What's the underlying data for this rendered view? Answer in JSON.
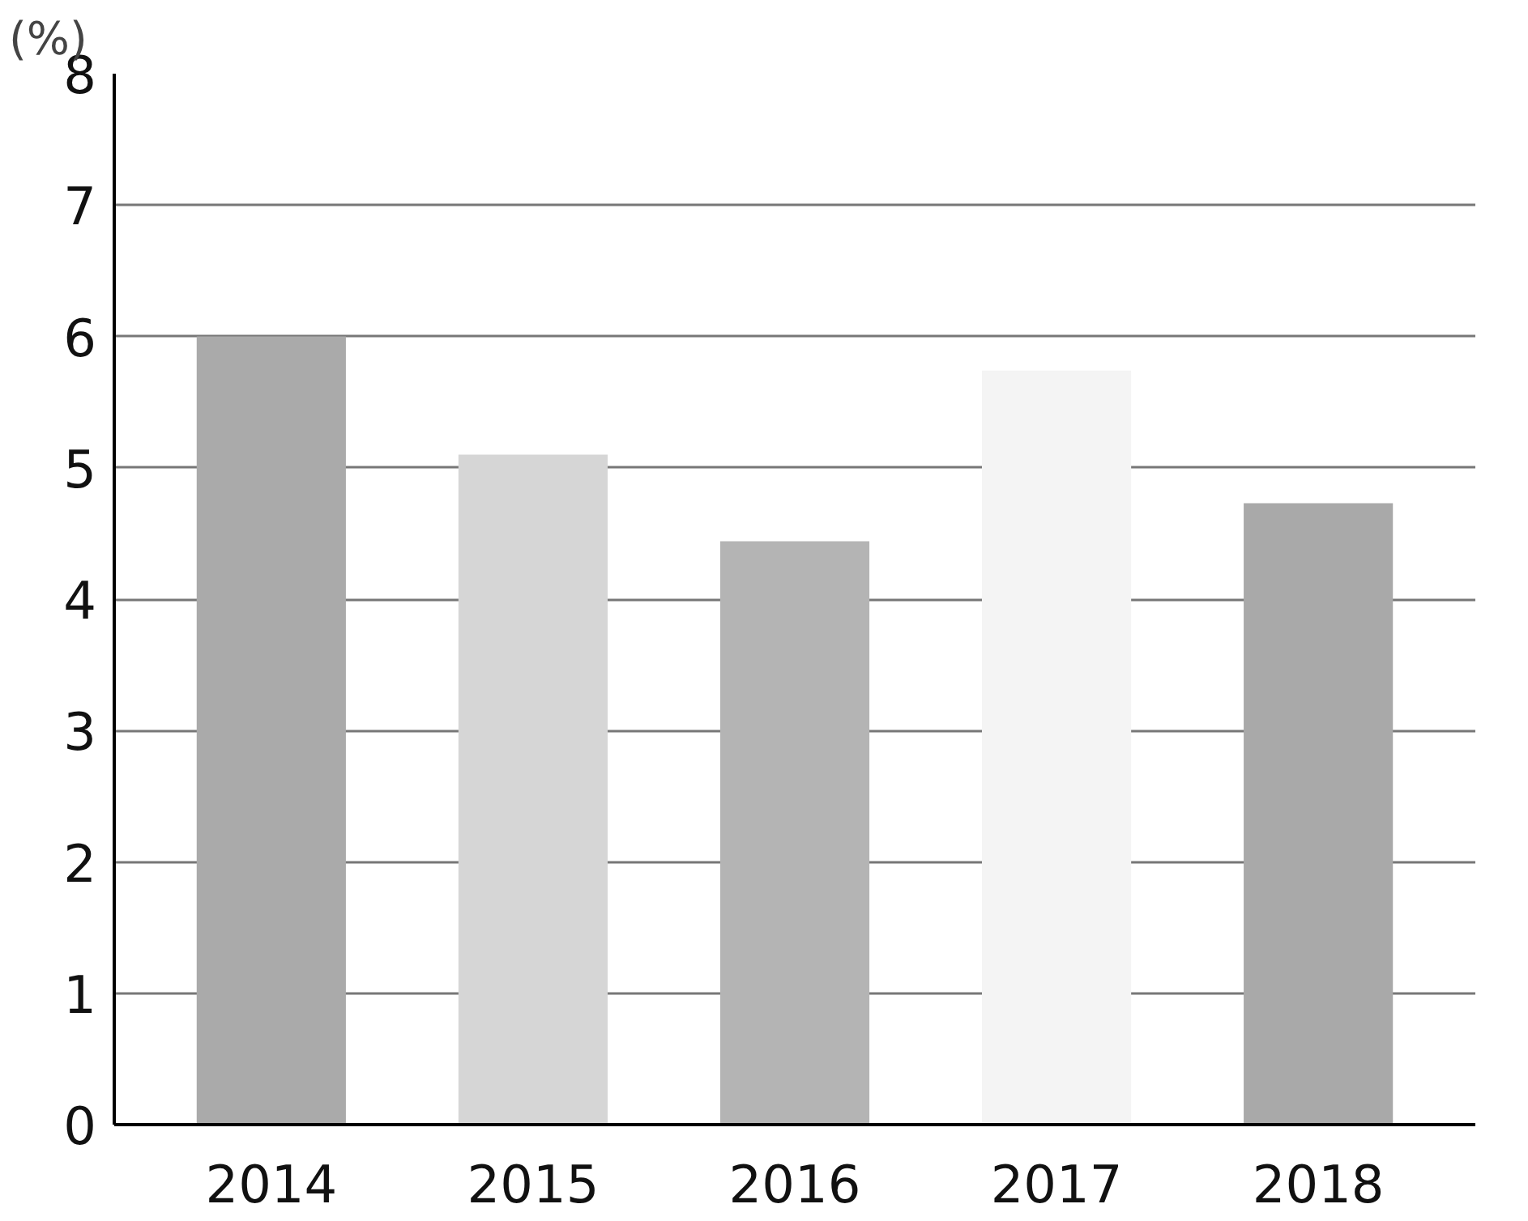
{
  "chart_data": {
    "type": "bar",
    "ylabel": "(%)",
    "categories": [
      "2014",
      "2015",
      "2016",
      "2017",
      "2018"
    ],
    "values": [
      6.0,
      5.1,
      4.44,
      5.74,
      4.73
    ],
    "colors": [
      "#aaaaaa",
      "#d6d6d6",
      "#b4b4b4",
      "#f4f4f4",
      "#a9a9a9"
    ],
    "ylim": [
      0,
      8
    ],
    "yticks": [
      0,
      1,
      2,
      3,
      4,
      5,
      6,
      7,
      8
    ],
    "grid": "y"
  }
}
